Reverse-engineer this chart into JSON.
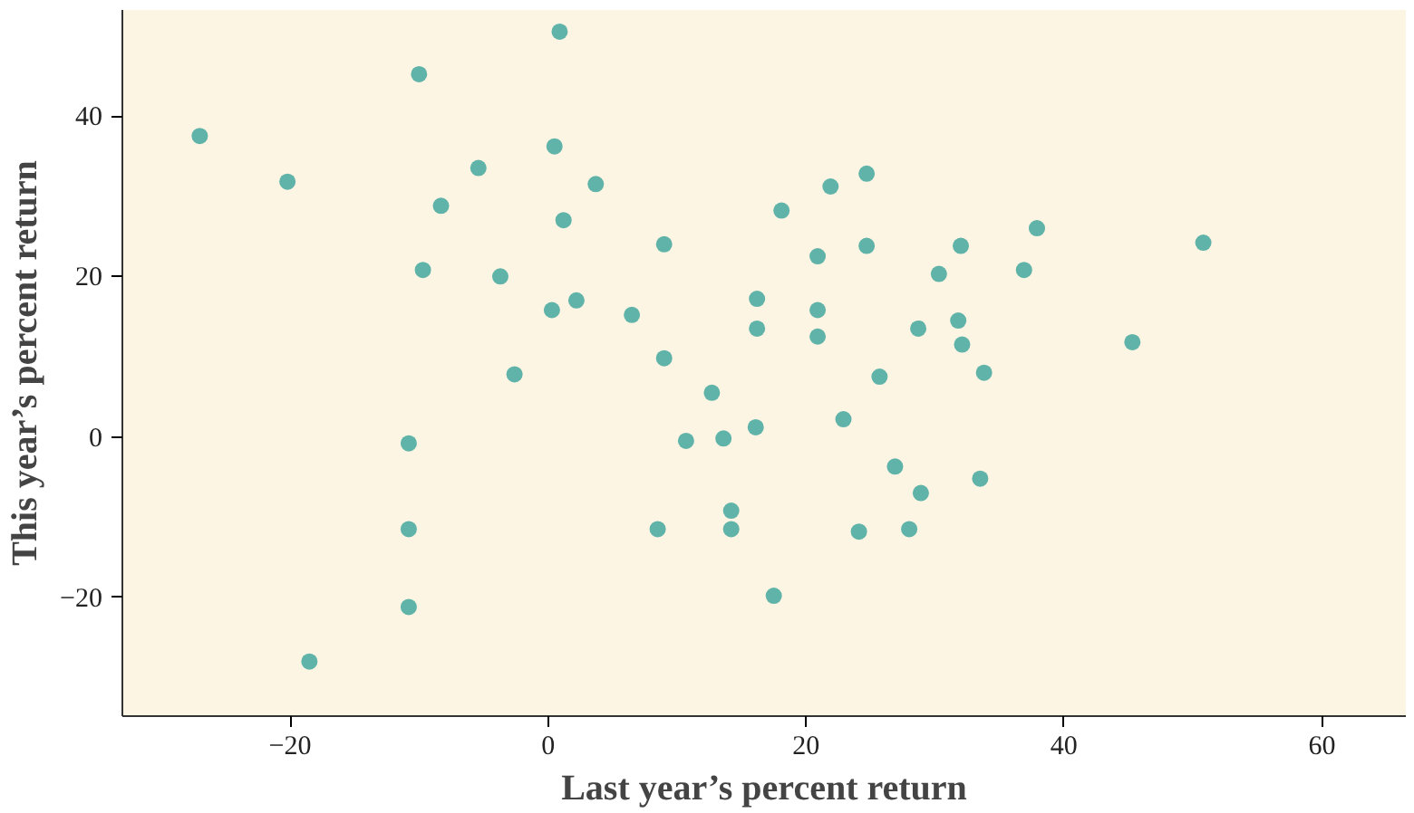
{
  "chart_data": {
    "type": "scatter",
    "xlabel": "Last year’s percent return",
    "ylabel": "This year’s percent return",
    "xlim": [
      -33,
      66.5
    ],
    "ylim": [
      -34.8,
      53.2
    ],
    "xticks": [
      -20,
      0,
      20,
      40,
      60
    ],
    "yticks": [
      -20,
      0,
      20,
      40
    ],
    "grid": false,
    "marker": "circle",
    "series": [
      {
        "color": "#5fb3a8",
        "x": [
          -27.0,
          -20.2,
          -10.0,
          -9.7,
          -8.3,
          -5.4,
          -3.7,
          -2.6,
          -10.8,
          -10.8,
          -10.8,
          -18.5,
          0.9,
          0.5,
          1.2,
          3.7,
          0.3,
          2.2,
          6.5,
          9.0,
          9.0,
          12.7,
          10.7,
          13.6,
          16.1,
          8.5,
          14.2,
          14.2,
          17.5,
          18.1,
          16.2,
          16.2,
          21.9,
          24.7,
          20.9,
          24.7,
          37.9,
          32.0,
          30.3,
          36.9,
          50.8,
          45.3,
          20.9,
          20.9,
          28.7,
          31.8,
          32.1,
          33.8,
          25.7,
          22.9,
          26.9,
          28.9,
          33.5,
          24.1,
          28.0
        ],
        "values": [
          37.5,
          31.8,
          45.2,
          20.8,
          28.8,
          33.5,
          20.0,
          7.8,
          -0.8,
          -11.5,
          -21.2,
          -28.0,
          50.5,
          36.2,
          27.0,
          31.5,
          15.8,
          17.0,
          15.2,
          24.0,
          9.8,
          5.5,
          -0.5,
          -0.2,
          1.2,
          -11.5,
          -9.2,
          -11.5,
          -19.8,
          28.2,
          17.2,
          13.5,
          31.2,
          32.8,
          22.5,
          23.8,
          26.0,
          23.8,
          20.3,
          20.8,
          24.2,
          11.8,
          15.8,
          12.5,
          13.5,
          14.5,
          11.5,
          8.0,
          7.5,
          2.2,
          -3.7,
          -7.0,
          -5.2,
          -11.8,
          -11.5
        ]
      }
    ]
  }
}
